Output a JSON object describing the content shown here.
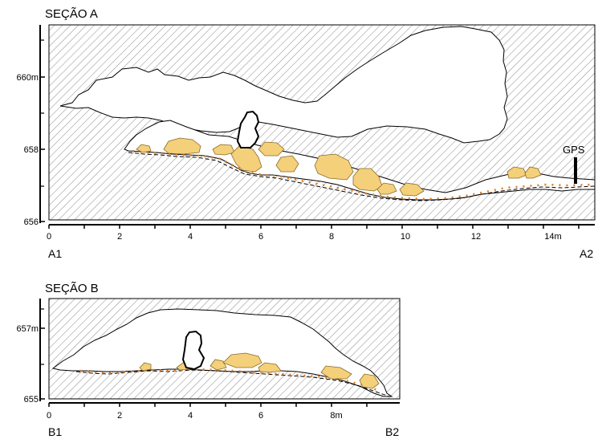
{
  "section_a": {
    "title": "SEÇÃO A",
    "y_ticks": [
      "660m",
      "658",
      "656"
    ],
    "x_ticks": [
      "0",
      "2",
      "4",
      "6",
      "8",
      "10",
      "12",
      "14m"
    ],
    "start_label": "A1",
    "end_label": "A2",
    "marker_label": "GPS"
  },
  "section_b": {
    "title": "SEÇÃO B",
    "y_ticks": [
      "657m",
      "655"
    ],
    "x_ticks": [
      "0",
      "2",
      "4",
      "6",
      "8m"
    ],
    "start_label": "B1",
    "end_label": "B2"
  },
  "colors": {
    "rock_fill": "#f4d07a",
    "rock_stroke": "#8a6a2a",
    "sediment_dots": "#e07a1e",
    "hatch": "#8a8a8a"
  }
}
